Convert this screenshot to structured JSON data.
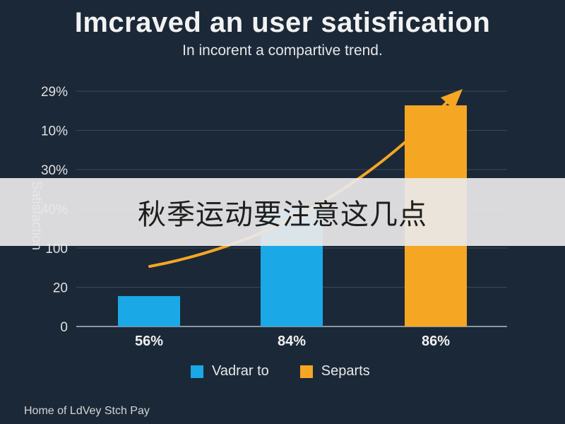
{
  "chart_data": {
    "type": "bar",
    "title": "Imcraved an user satisfication",
    "subtitle": "In incorent a compartive trend.",
    "ylabel": "Satisfaction",
    "yticks": [
      "0",
      "20",
      "100",
      "40%",
      "30%",
      "10%",
      "29%"
    ],
    "categories": [
      "56%",
      "84%",
      "86%"
    ],
    "series": [
      {
        "name": "Vadrar to",
        "color": "#1ba8e6",
        "values": [
          1.5,
          5.8,
          10.9
        ]
      },
      {
        "name": "Separts",
        "color": "#f5a623",
        "values": [
          null,
          null,
          10.9
        ]
      }
    ],
    "bar_colors": [
      "#1ba8e6",
      "#1ba8e6",
      "#f5a623"
    ],
    "ylim": [
      0,
      11.6
    ],
    "grid": true,
    "trend_arrow": {
      "color": "#f5a623",
      "direction": "up-right"
    },
    "legend_position": "bottom"
  },
  "overlay_text": "秋季运动要注意这几点",
  "footer_text": "Home of LdVey Stch Pay"
}
